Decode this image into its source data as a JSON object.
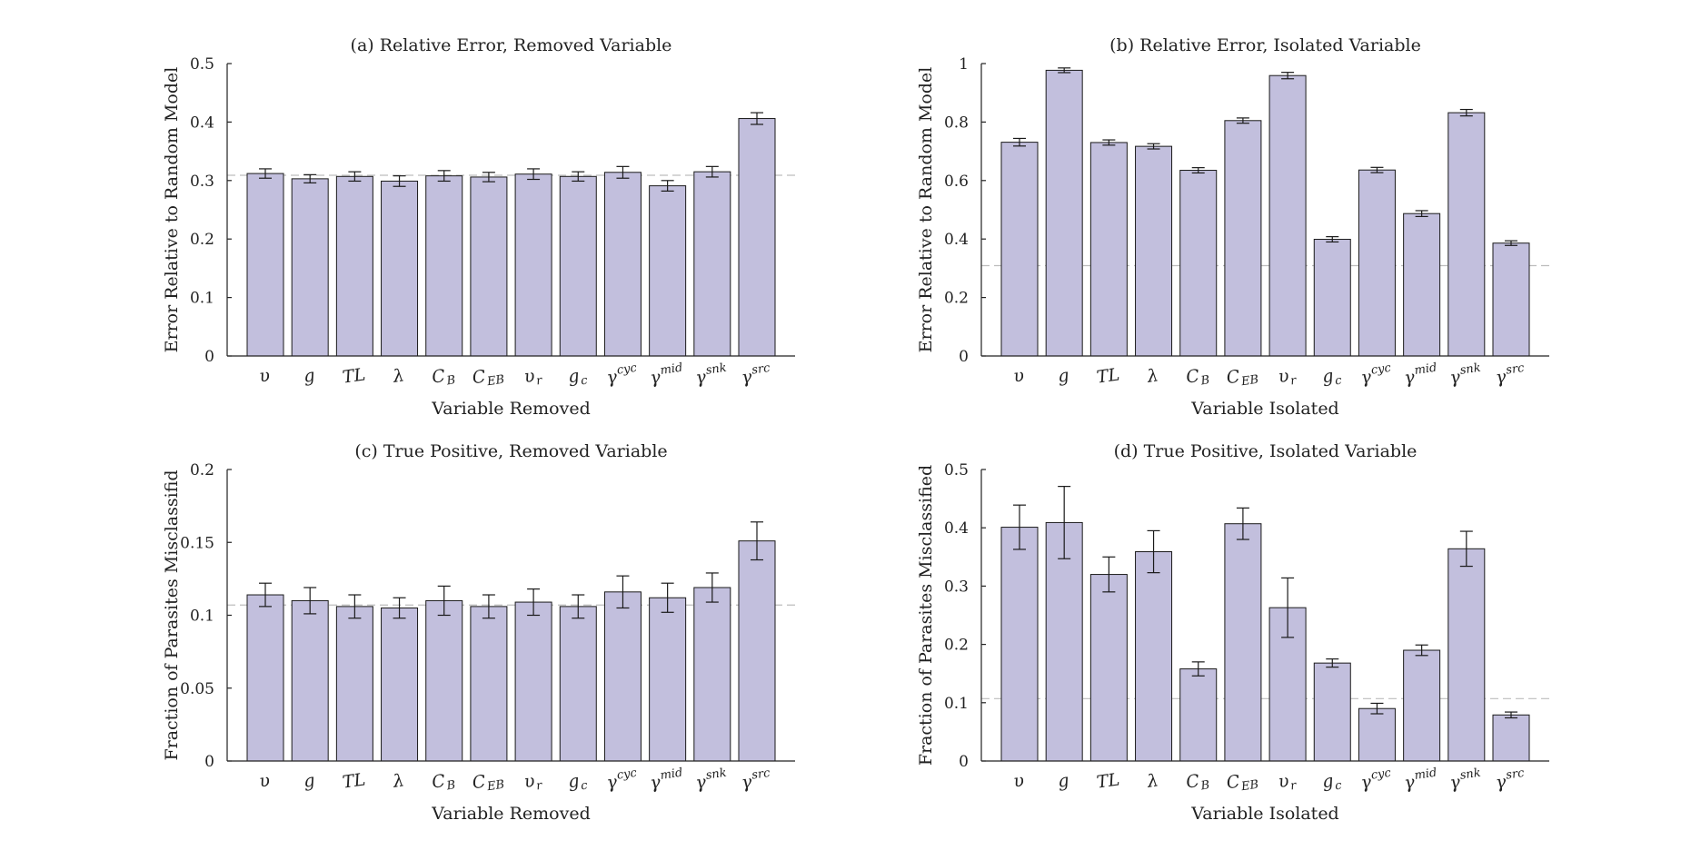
{
  "figure": {
    "charts": [
      "a",
      "b",
      "c",
      "d"
    ]
  },
  "colors": {
    "bar_fill": "#c2bfdd",
    "bar_stroke": "#1a1a1a",
    "axis": "#222222",
    "baseline": "#bdbdbd"
  },
  "categories": [
    {
      "base": "υ"
    },
    {
      "base": "g"
    },
    {
      "base": "TL"
    },
    {
      "base": "λ"
    },
    {
      "base": "C",
      "sub": "B"
    },
    {
      "base": "C",
      "sub": "EB"
    },
    {
      "base": "υ",
      "sub": "r"
    },
    {
      "base": "g",
      "sub": "c"
    },
    {
      "base": "γ",
      "sup": "cyc"
    },
    {
      "base": "γ",
      "sup": "mid"
    },
    {
      "base": "γ",
      "sup": "snk"
    },
    {
      "base": "γ",
      "sup": "src"
    }
  ],
  "chart_data": [
    {
      "id": "a",
      "type": "bar",
      "title": "(a) Relative Error, Removed Variable",
      "xlabel": "Variable Removed",
      "ylabel": "Error Relative to Random Model",
      "ylim": [
        0,
        0.5
      ],
      "yticks": [
        0,
        0.1,
        0.2,
        0.3,
        0.4,
        0.5
      ],
      "ytick_labels": [
        "0",
        "0.1",
        "0.2",
        "0.3",
        "0.4",
        "0.5"
      ],
      "baseline": 0.309,
      "values": [
        0.312,
        0.303,
        0.307,
        0.299,
        0.308,
        0.306,
        0.311,
        0.307,
        0.314,
        0.291,
        0.315,
        0.406
      ],
      "errors": [
        0.008,
        0.007,
        0.008,
        0.009,
        0.009,
        0.008,
        0.009,
        0.008,
        0.01,
        0.009,
        0.009,
        0.01
      ]
    },
    {
      "id": "b",
      "type": "bar",
      "title": "(b) Relative Error, Isolated Variable",
      "xlabel": "Variable Isolated",
      "ylabel": "Error Relative to Random Model",
      "ylim": [
        0,
        1
      ],
      "yticks": [
        0,
        0.2,
        0.4,
        0.6,
        0.8,
        1
      ],
      "ytick_labels": [
        "0",
        "0.2",
        "0.4",
        "0.6",
        "0.8",
        "1"
      ],
      "baseline": 0.309,
      "values": [
        0.731,
        0.977,
        0.73,
        0.717,
        0.635,
        0.805,
        0.959,
        0.399,
        0.636,
        0.487,
        0.832,
        0.386
      ],
      "errors": [
        0.013,
        0.008,
        0.009,
        0.009,
        0.009,
        0.009,
        0.011,
        0.009,
        0.009,
        0.01,
        0.011,
        0.008
      ]
    },
    {
      "id": "c",
      "type": "bar",
      "title": "(c) True Positive, Removed Variable",
      "xlabel": "Variable Removed",
      "ylabel": "Fraction of Parasites Misclassifid",
      "ylim": [
        0,
        0.2
      ],
      "yticks": [
        0,
        0.05,
        0.1,
        0.15,
        0.2
      ],
      "ytick_labels": [
        "0",
        "0.05",
        "0.1",
        "0.15",
        "0.2"
      ],
      "baseline": 0.107,
      "values": [
        0.114,
        0.11,
        0.106,
        0.105,
        0.11,
        0.106,
        0.109,
        0.106,
        0.116,
        0.112,
        0.119,
        0.151
      ],
      "errors": [
        0.008,
        0.009,
        0.008,
        0.007,
        0.01,
        0.008,
        0.009,
        0.008,
        0.011,
        0.01,
        0.01,
        0.013
      ]
    },
    {
      "id": "d",
      "type": "bar",
      "title": "(d) True Positive, Isolated Variable",
      "xlabel": "Variable Isolated",
      "ylabel": "Fraction of Parasites Misclassified",
      "ylim": [
        0,
        0.5
      ],
      "yticks": [
        0,
        0.1,
        0.2,
        0.3,
        0.4,
        0.5
      ],
      "ytick_labels": [
        "0",
        "0.1",
        "0.2",
        "0.3",
        "0.4",
        "0.5"
      ],
      "baseline": 0.107,
      "values": [
        0.401,
        0.409,
        0.32,
        0.359,
        0.158,
        0.407,
        0.263,
        0.168,
        0.09,
        0.19,
        0.364,
        0.079
      ],
      "errors": [
        0.038,
        0.062,
        0.03,
        0.036,
        0.012,
        0.027,
        0.051,
        0.007,
        0.009,
        0.009,
        0.03,
        0.005
      ]
    }
  ]
}
